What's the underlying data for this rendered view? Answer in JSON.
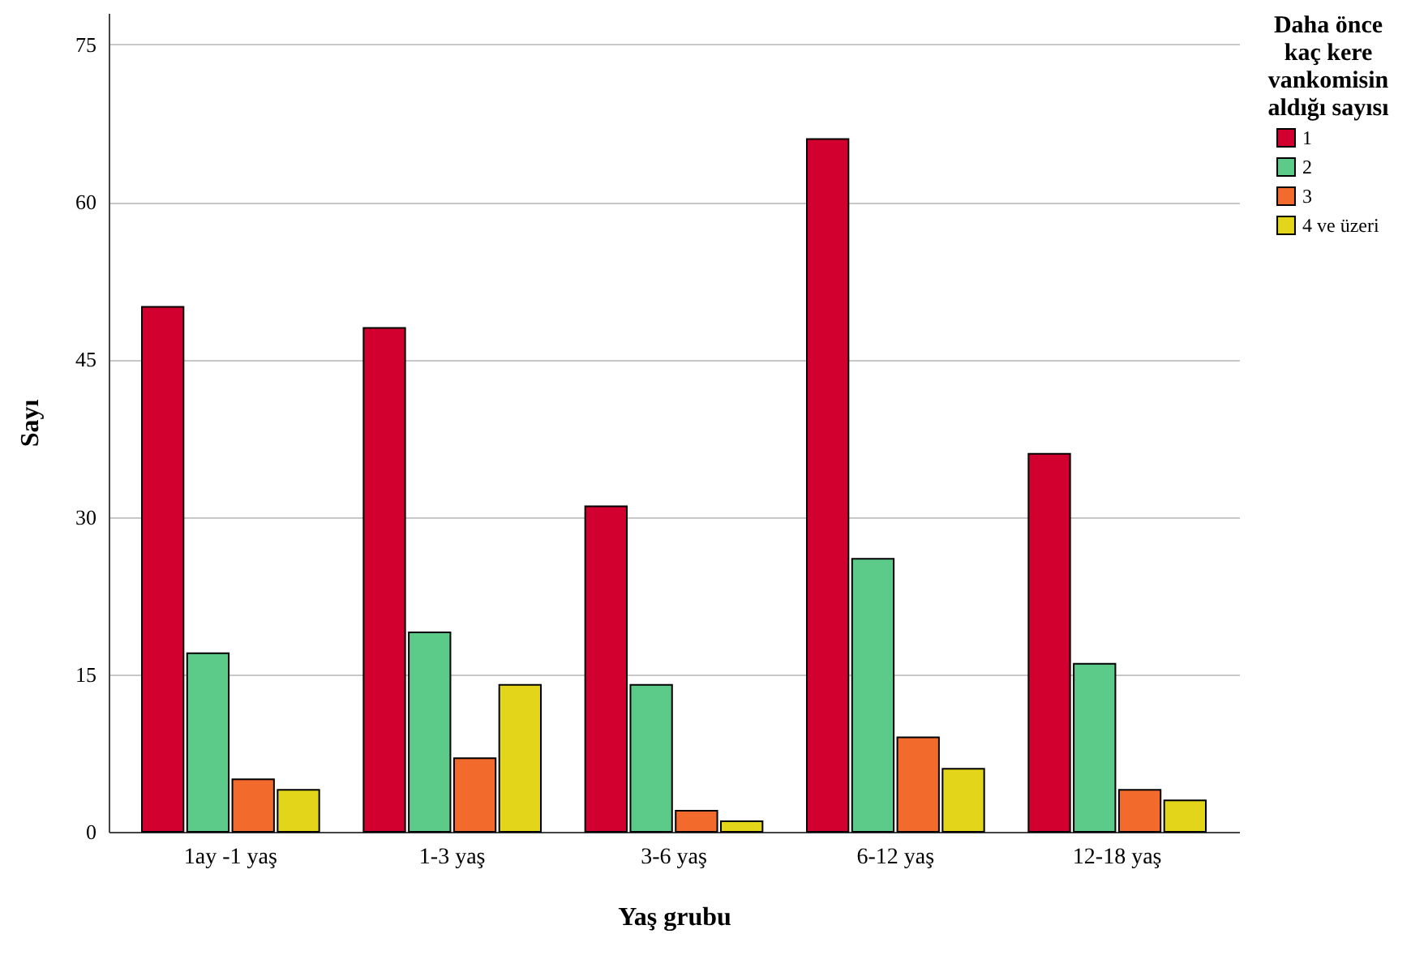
{
  "chart_data": {
    "type": "bar",
    "xlabel": "Yaş grubu",
    "ylabel": "Sayı",
    "legend_title": "Daha önce kaç kere vankomisin aldığı sayısı",
    "categories": [
      "1ay -1 yaş",
      "1-3 yaş",
      "3-6 yaş",
      "6-12 yaş",
      "12-18 yaş"
    ],
    "series": [
      {
        "name": "1",
        "color": "#d1002f",
        "values": [
          50,
          48,
          31,
          66,
          36
        ]
      },
      {
        "name": "2",
        "color": "#5ccb8a",
        "values": [
          17,
          19,
          14,
          26,
          16
        ]
      },
      {
        "name": "3",
        "color": "#f26a2c",
        "values": [
          5,
          7,
          2,
          9,
          4
        ]
      },
      {
        "name": "4 ve üzeri",
        "color": "#e2d51a",
        "values": [
          4,
          14,
          1,
          6,
          3
        ]
      }
    ],
    "ylim": [
      0,
      78
    ],
    "yticks": [
      0,
      15,
      30,
      45,
      60,
      75
    ],
    "grid": "y",
    "legend": "top right"
  }
}
